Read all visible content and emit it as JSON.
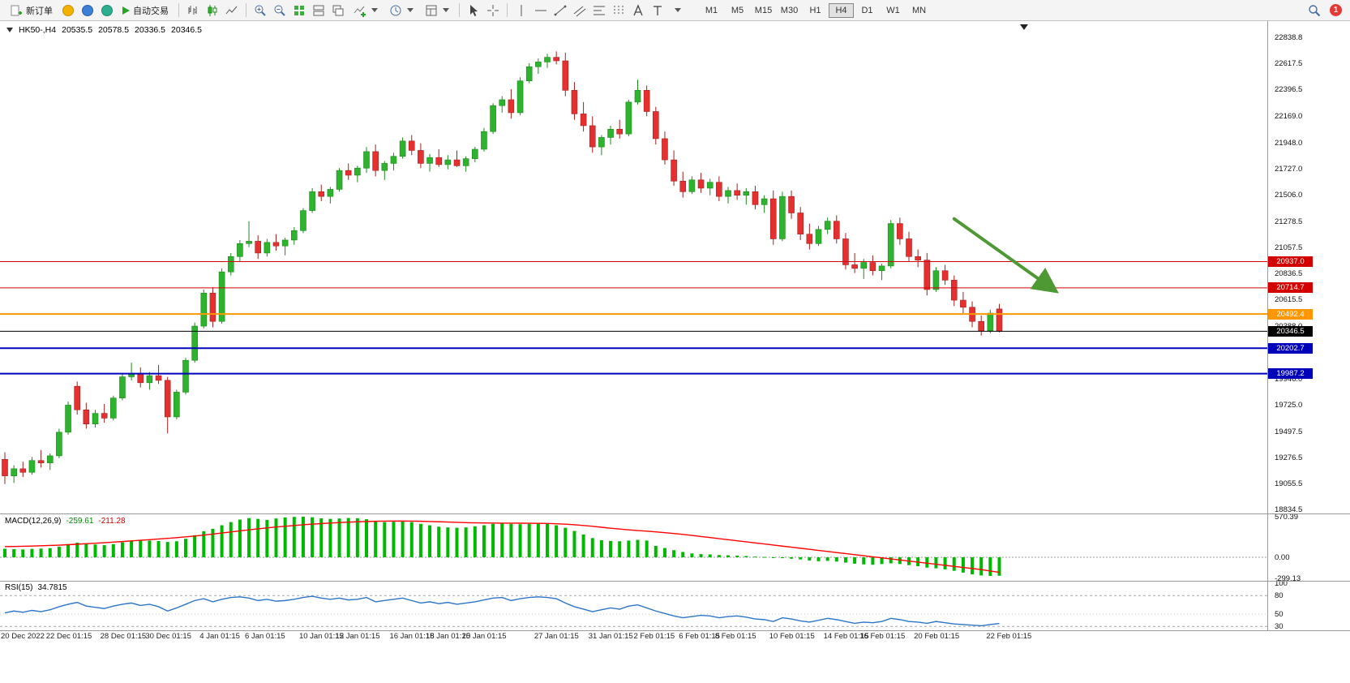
{
  "toolbar": {
    "new_order_label": "新订单",
    "auto_trading_label": "自动交易",
    "timeframes": [
      "M1",
      "M5",
      "M15",
      "M30",
      "H1",
      "H4",
      "D1",
      "W1",
      "MN"
    ],
    "active_timeframe": "H4",
    "notification_count": "1",
    "icons": [
      "new-order-icon",
      "deposit-icon",
      "service-icon",
      "community-icon",
      "auto-trading-play-icon",
      "bar-chart-icon",
      "candlestick-chart-icon",
      "line-chart-icon",
      "zoom-in-icon",
      "zoom-out-icon",
      "tile-grid-icon",
      "tile-windows-icon",
      "cascade-windows-icon",
      "add-indicator-icon",
      "period-clock-icon",
      "template-icon",
      "cursor-icon",
      "crosshair-icon",
      "vertical-line-icon",
      "horizontal-line-icon",
      "trendline-icon",
      "channel-icon",
      "fibonacci-icon",
      "cycle-lines-icon",
      "text-icon",
      "label-icon",
      "dropdown-caret-icon",
      "search-icon"
    ]
  },
  "chart": {
    "symbol_period": "HK50-,H4",
    "open": "20535.5",
    "high": "20578.5",
    "low": "20336.5",
    "close": "20346.5"
  },
  "indicators": {
    "macd": {
      "label": "MACD(12,26,9)",
      "main_value": "-259.61",
      "signal_value": "-211.28"
    },
    "rsi": {
      "label": "RSI(15)",
      "value": "34.7815"
    }
  },
  "colors": {
    "candle_up": "#2db32d",
    "candle_down": "#e63030",
    "wick_up": "#1d8a1c",
    "wick_down": "#a61f1f",
    "level_red": "#d40000",
    "level_orange": "#ff9800",
    "level_blue": "#0000bb",
    "level_black": "#000000",
    "macd_hist": "#00b800",
    "macd_signal": "#ff0000",
    "rsi_line": "#2e75c8",
    "arrow_green": "#4e9934"
  },
  "chart_data": {
    "type": "candlestick",
    "title": "HK50- H4 chart with MACD and RSI",
    "price_panel": {
      "axis_range": [
        18801,
        22977
      ],
      "price_axis_labels": [
        "22838.8",
        "22617.5",
        "22396.5",
        "22169.0",
        "21948.0",
        "21727.0",
        "21506.0",
        "21278.5",
        "21057.5",
        "20836.5",
        "20615.5",
        "20388.0",
        "19946.0",
        "19725.0",
        "19497.5",
        "19276.5",
        "19055.5",
        "18834.5"
      ],
      "levels": [
        {
          "value": 20937.0,
          "label": "20937.0",
          "color_key": "level_red",
          "width": 1
        },
        {
          "value": 20714.7,
          "label": "20714.7",
          "color_key": "level_red",
          "width": 1
        },
        {
          "value": 20492.4,
          "label": "20492.4",
          "color_key": "level_orange",
          "width": 2
        },
        {
          "value": 20346.5,
          "label": "20346.5",
          "color_key": "level_black",
          "width": 1
        },
        {
          "value": 20202.7,
          "label": "20202.7",
          "color_key": "level_blue",
          "width": 2
        },
        {
          "value": 19987.2,
          "label": "19987.2",
          "color_key": "level_blue",
          "width": 2
        }
      ],
      "arrow": {
        "from_bar": 105,
        "from_price": 21300,
        "to_bar": 116,
        "to_price": 20700
      },
      "candles": [
        [
          19260,
          19320,
          19050,
          19120
        ],
        [
          19120,
          19210,
          19060,
          19180
        ],
        [
          19180,
          19240,
          19110,
          19150
        ],
        [
          19150,
          19280,
          19130,
          19250
        ],
        [
          19250,
          19340,
          19190,
          19230
        ],
        [
          19230,
          19310,
          19170,
          19290
        ],
        [
          19290,
          19520,
          19270,
          19490
        ],
        [
          19490,
          19750,
          19470,
          19720
        ],
        [
          19880,
          19920,
          19640,
          19680
        ],
        [
          19680,
          19740,
          19520,
          19560
        ],
        [
          19560,
          19680,
          19530,
          19650
        ],
        [
          19650,
          19730,
          19570,
          19610
        ],
        [
          19610,
          19800,
          19590,
          19780
        ],
        [
          19780,
          19990,
          19760,
          19960
        ],
        [
          19960,
          20080,
          19930,
          19990
        ],
        [
          19990,
          20040,
          19870,
          19910
        ],
        [
          19910,
          20000,
          19850,
          19970
        ],
        [
          19970,
          20060,
          19900,
          19930
        ],
        [
          19930,
          19960,
          19480,
          19620
        ],
        [
          19620,
          19850,
          19600,
          19830
        ],
        [
          19830,
          20120,
          19810,
          20100
        ],
        [
          20100,
          20420,
          20080,
          20390
        ],
        [
          20390,
          20700,
          20370,
          20670
        ],
        [
          20670,
          20720,
          20380,
          20430
        ],
        [
          20430,
          20880,
          20410,
          20850
        ],
        [
          20850,
          21010,
          20820,
          20980
        ],
        [
          20980,
          21120,
          20940,
          21090
        ],
        [
          21090,
          21280,
          21060,
          21110
        ],
        [
          21110,
          21160,
          20960,
          21010
        ],
        [
          21010,
          21130,
          20980,
          21100
        ],
        [
          21100,
          21170,
          21030,
          21070
        ],
        [
          21070,
          21140,
          20990,
          21120
        ],
        [
          21120,
          21230,
          21080,
          21200
        ],
        [
          21200,
          21390,
          21180,
          21370
        ],
        [
          21370,
          21560,
          21350,
          21530
        ],
        [
          21530,
          21590,
          21450,
          21490
        ],
        [
          21490,
          21570,
          21430,
          21550
        ],
        [
          21550,
          21730,
          21530,
          21710
        ],
        [
          21710,
          21770,
          21630,
          21670
        ],
        [
          21670,
          21750,
          21610,
          21730
        ],
        [
          21730,
          21910,
          21690,
          21870
        ],
        [
          21870,
          21930,
          21660,
          21710
        ],
        [
          21710,
          21790,
          21630,
          21770
        ],
        [
          21770,
          21860,
          21710,
          21830
        ],
        [
          21830,
          21990,
          21810,
          21960
        ],
        [
          21960,
          22010,
          21840,
          21880
        ],
        [
          21880,
          21940,
          21730,
          21770
        ],
        [
          21770,
          21850,
          21700,
          21820
        ],
        [
          21820,
          21890,
          21740,
          21760
        ],
        [
          21760,
          21840,
          21720,
          21800
        ],
        [
          21800,
          21880,
          21740,
          21750
        ],
        [
          21750,
          21830,
          21700,
          21810
        ],
        [
          21810,
          21910,
          21780,
          21890
        ],
        [
          21890,
          22070,
          21870,
          22040
        ],
        [
          22040,
          22280,
          22020,
          22260
        ],
        [
          22260,
          22340,
          22200,
          22310
        ],
        [
          22310,
          22400,
          22150,
          22200
        ],
        [
          22200,
          22500,
          22180,
          22470
        ],
        [
          22470,
          22620,
          22450,
          22590
        ],
        [
          22590,
          22660,
          22530,
          22630
        ],
        [
          22630,
          22700,
          22580,
          22670
        ],
        [
          22670,
          22720,
          22610,
          22640
        ],
        [
          22640,
          22710,
          22340,
          22390
        ],
        [
          22390,
          22460,
          22140,
          22190
        ],
        [
          22190,
          22290,
          22040,
          22090
        ],
        [
          22090,
          22170,
          21860,
          21910
        ],
        [
          21910,
          22010,
          21840,
          21990
        ],
        [
          21990,
          22090,
          21930,
          22060
        ],
        [
          22060,
          22140,
          21980,
          22020
        ],
        [
          22020,
          22310,
          22000,
          22290
        ],
        [
          22290,
          22480,
          22270,
          22390
        ],
        [
          22390,
          22430,
          22170,
          22210
        ],
        [
          22210,
          22250,
          21930,
          21980
        ],
        [
          21980,
          22040,
          21760,
          21800
        ],
        [
          21800,
          21880,
          21580,
          21620
        ],
        [
          21620,
          21700,
          21480,
          21530
        ],
        [
          21530,
          21660,
          21510,
          21630
        ],
        [
          21630,
          21690,
          21520,
          21560
        ],
        [
          21560,
          21640,
          21500,
          21610
        ],
        [
          21610,
          21660,
          21450,
          21490
        ],
        [
          21490,
          21570,
          21430,
          21540
        ],
        [
          21540,
          21600,
          21460,
          21500
        ],
        [
          21500,
          21560,
          21420,
          21530
        ],
        [
          21530,
          21580,
          21380,
          21420
        ],
        [
          21420,
          21500,
          21350,
          21470
        ],
        [
          21470,
          21540,
          21080,
          21130
        ],
        [
          21130,
          21530,
          21110,
          21490
        ],
        [
          21490,
          21540,
          21300,
          21350
        ],
        [
          21350,
          21400,
          21120,
          21170
        ],
        [
          21170,
          21260,
          21040,
          21090
        ],
        [
          21090,
          21240,
          21070,
          21210
        ],
        [
          21210,
          21310,
          21170,
          21280
        ],
        [
          21280,
          21330,
          21090,
          21130
        ],
        [
          21130,
          21180,
          20870,
          20910
        ],
        [
          20910,
          21010,
          20840,
          20880
        ],
        [
          20880,
          20960,
          20790,
          20930
        ],
        [
          20930,
          20990,
          20820,
          20860
        ],
        [
          20860,
          20920,
          20780,
          20900
        ],
        [
          20900,
          21290,
          20880,
          21260
        ],
        [
          21260,
          21310,
          21080,
          21130
        ],
        [
          21130,
          21190,
          20940,
          20980
        ],
        [
          20980,
          21040,
          20890,
          20950
        ],
        [
          20950,
          21010,
          20650,
          20700
        ],
        [
          20700,
          20890,
          20680,
          20860
        ],
        [
          20860,
          20910,
          20740,
          20780
        ],
        [
          20780,
          20820,
          20560,
          20610
        ],
        [
          20610,
          20680,
          20500,
          20550
        ],
        [
          20550,
          20600,
          20380,
          20430
        ],
        [
          20430,
          20480,
          20310,
          20350
        ],
        [
          20350,
          20530,
          20330,
          20500
        ],
        [
          20535.5,
          20578.5,
          20336.5,
          20346.5
        ]
      ]
    },
    "macd_panel": {
      "axis_range": [
        -319,
        593
      ],
      "axis_labels": [
        "570.39",
        "0.00",
        "-299.13"
      ],
      "axis_label_values": [
        570.39,
        0,
        -299.13
      ],
      "histogram": [
        120,
        115,
        110,
        118,
        122,
        128,
        150,
        185,
        205,
        195,
        180,
        170,
        185,
        210,
        235,
        240,
        235,
        228,
        215,
        225,
        260,
        310,
        365,
        400,
        450,
        495,
        530,
        550,
        540,
        525,
        545,
        560,
        568,
        570,
        562,
        548,
        540,
        545,
        552,
        548,
        535,
        510,
        495,
        500,
        505,
        495,
        470,
        450,
        430,
        420,
        415,
        420,
        435,
        450,
        470,
        480,
        470,
        465,
        470,
        475,
        470,
        450,
        415,
        370,
        320,
        270,
        240,
        230,
        225,
        235,
        245,
        235,
        160,
        130,
        100,
        75,
        55,
        45,
        40,
        32,
        28,
        24,
        18,
        10,
        5,
        -5,
        -12,
        -20,
        -30,
        -45,
        -55,
        -50,
        -60,
        -75,
        -90,
        -100,
        -105,
        -95,
        -85,
        -95,
        -110,
        -125,
        -145,
        -155,
        -170,
        -190,
        -215,
        -240,
        -255,
        -262,
        -259.61
      ],
      "signal": [
        150,
        152,
        155,
        158,
        162,
        166,
        171,
        177,
        184,
        191,
        198,
        205,
        213,
        221,
        230,
        239,
        248,
        257,
        266,
        276,
        287,
        299,
        312,
        326,
        341,
        356,
        371,
        386,
        400,
        413,
        425,
        436,
        447,
        457,
        466,
        474,
        481,
        488,
        494,
        499,
        503,
        506,
        508,
        509,
        509,
        508,
        506,
        503,
        499,
        495,
        491,
        487,
        484,
        482,
        481,
        480,
        480,
        479,
        478,
        477,
        475,
        471,
        465,
        457,
        447,
        435,
        422,
        409,
        397,
        386,
        376,
        367,
        357,
        346,
        334,
        321,
        307,
        292,
        277,
        262,
        247,
        232,
        217,
        202,
        187,
        172,
        157,
        142,
        127,
        112,
        97,
        82,
        67,
        52,
        37,
        22,
        7,
        -8,
        -23,
        -38,
        -53,
        -68,
        -83,
        -98,
        -113,
        -128,
        -143,
        -158,
        -173,
        -193,
        -211.28
      ]
    },
    "rsi_panel": {
      "axis_range": [
        25,
        101.5
      ],
      "axis_labels": [
        "100",
        "80",
        "50",
        "30"
      ],
      "axis_label_values": [
        100,
        80,
        50,
        30
      ],
      "level_lines": [
        80,
        50,
        30
      ],
      "values": [
        52,
        55,
        53,
        56,
        54,
        57,
        62,
        66,
        69,
        63,
        61,
        59,
        63,
        66,
        68,
        64,
        66,
        62,
        55,
        60,
        66,
        72,
        75,
        70,
        74,
        77,
        78,
        76,
        72,
        74,
        71,
        72,
        74,
        77,
        79,
        76,
        74,
        76,
        73,
        74,
        77,
        70,
        72,
        74,
        76,
        72,
        68,
        70,
        67,
        69,
        66,
        68,
        70,
        73,
        76,
        77,
        72,
        75,
        77,
        78,
        77,
        75,
        68,
        62,
        58,
        54,
        57,
        60,
        58,
        63,
        65,
        60,
        55,
        51,
        47,
        44,
        46,
        48,
        47,
        44,
        46,
        47,
        45,
        42,
        41,
        38,
        44,
        42,
        39,
        37,
        40,
        43,
        41,
        38,
        35,
        37,
        36,
        38,
        43,
        41,
        38,
        37,
        35,
        38,
        36,
        34,
        33,
        32,
        31,
        33,
        34.78
      ]
    },
    "time_axis": [
      {
        "label": "20 Dec 2022",
        "bar": 0
      },
      {
        "label": "22 Dec 01:15",
        "bar": 5
      },
      {
        "label": "28 Dec 01:15",
        "bar": 11
      },
      {
        "label": "30 Dec 01:15",
        "bar": 16
      },
      {
        "label": "4 Jan 01:15",
        "bar": 22
      },
      {
        "label": "6 Jan 01:15",
        "bar": 27
      },
      {
        "label": "10 Jan 01:15",
        "bar": 33
      },
      {
        "label": "12 Jan 01:15",
        "bar": 37
      },
      {
        "label": "16 Jan 01:15",
        "bar": 43
      },
      {
        "label": "18 Jan 01:15",
        "bar": 47
      },
      {
        "label": "20 Jan 01:15",
        "bar": 51
      },
      {
        "label": "27 Jan 01:15",
        "bar": 59
      },
      {
        "label": "31 Jan 01:15",
        "bar": 65
      },
      {
        "label": "2 Feb 01:15",
        "bar": 70
      },
      {
        "label": "6 Feb 01:15",
        "bar": 75
      },
      {
        "label": "8 Feb 01:15",
        "bar": 79
      },
      {
        "label": "10 Feb 01:15",
        "bar": 85
      },
      {
        "label": "14 Feb 01:15",
        "bar": 91
      },
      {
        "label": "16 Feb 01:15",
        "bar": 95
      },
      {
        "label": "20 Feb 01:15",
        "bar": 101
      },
      {
        "label": "22 Feb 01:15",
        "bar": 109
      }
    ]
  }
}
